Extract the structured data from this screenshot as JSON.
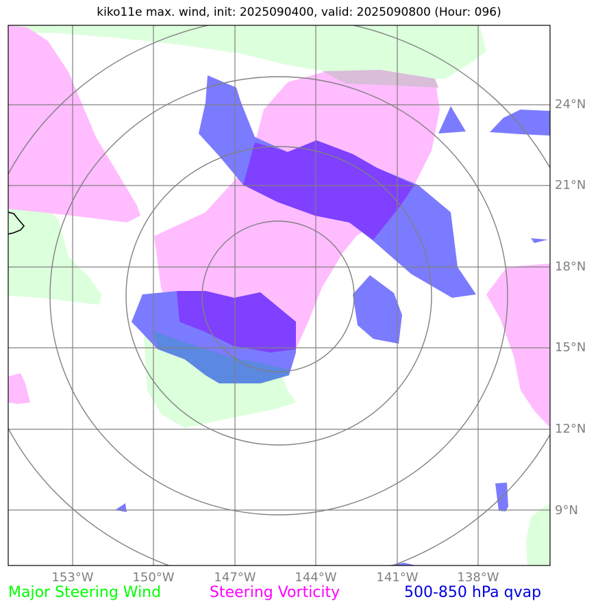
{
  "title": "kiko11e max. wind, init: 2025090400, valid: 2025090800 (Hour: 096)",
  "lat_labels": [
    "24°N",
    "21°N",
    "18°N",
    "15°N",
    "12°N",
    "9°N"
  ],
  "lon_labels": [
    "153°W",
    "150°W",
    "147°W",
    "144°W",
    "141°W",
    "138°W"
  ],
  "legend": {
    "wind": "Major Steering Wind",
    "vorticity": "Steering Vorticity",
    "qvap": "500-850 hPa qvap"
  },
  "colors": {
    "wind": "#00ff00",
    "vorticity": "#ff00ff",
    "qvap": "#0000dd",
    "wind_fill": "#dcffdc",
    "vorticity_fill": "#ffbcff",
    "qvap_fill": "#7b7bff",
    "overlap_fill": "#7f40ff",
    "grid": "#808080"
  }
}
